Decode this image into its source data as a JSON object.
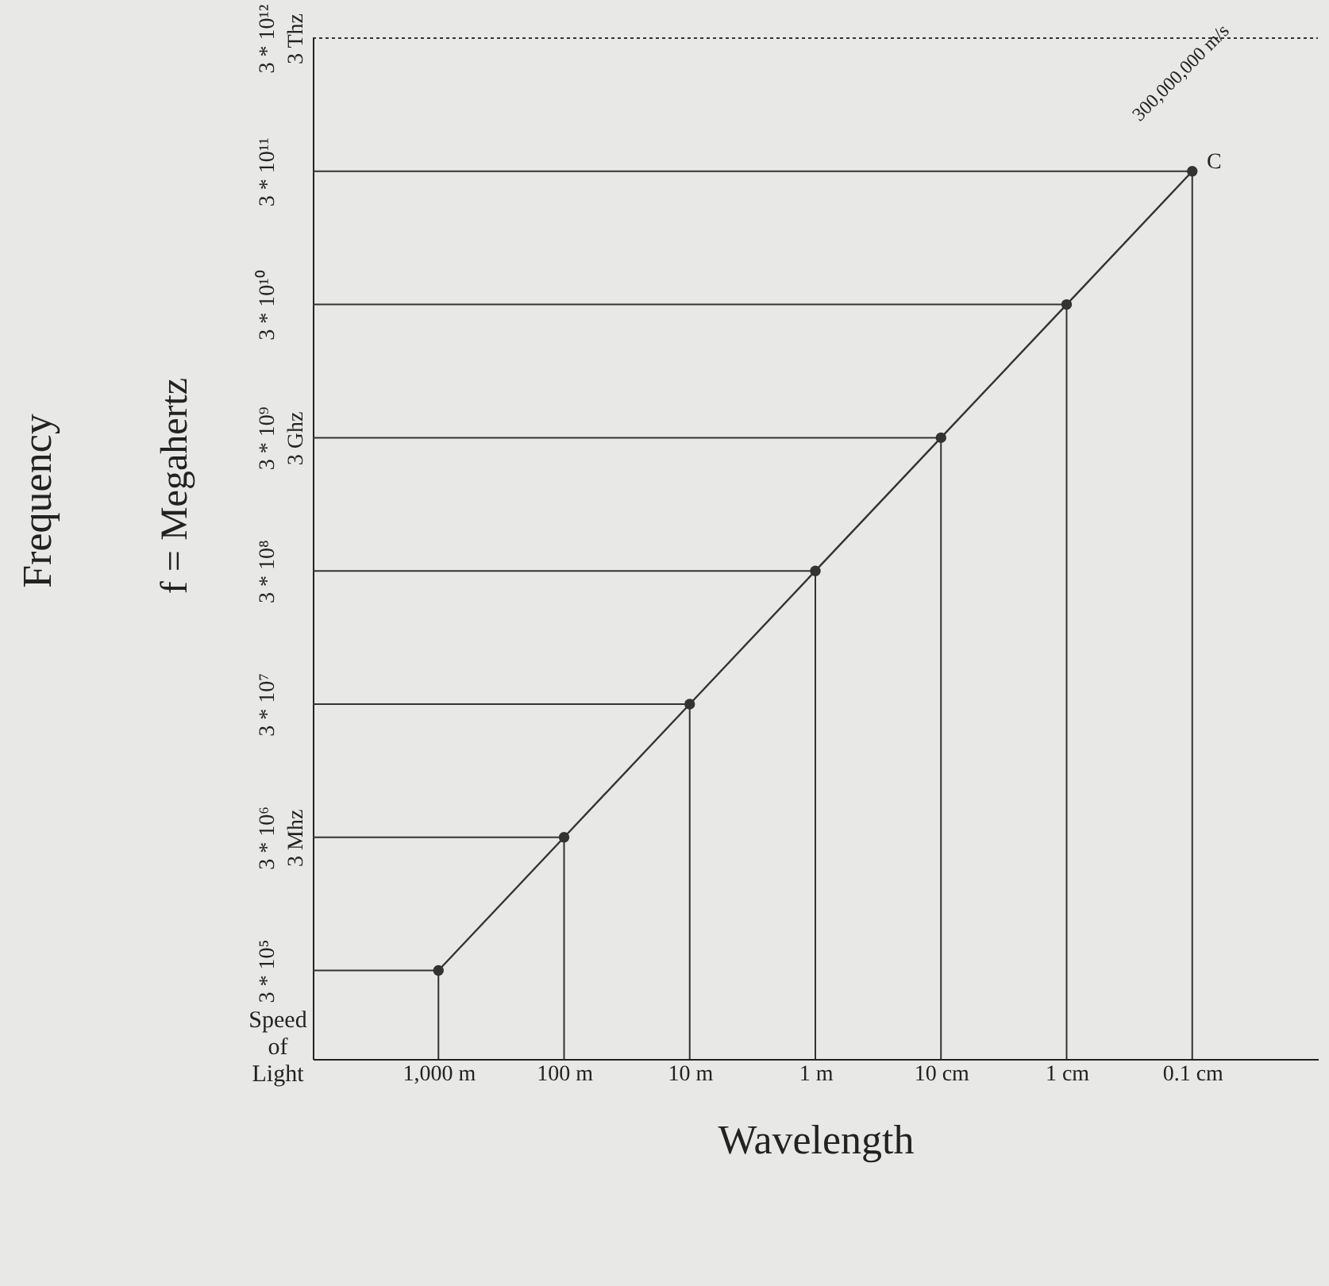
{
  "chart_data": {
    "type": "line",
    "xlabel": "Wavelength",
    "ylabel": "f = Megahertz",
    "categories": [
      "1,000 m",
      "100 m",
      "10 m",
      "1 m",
      "10 cm",
      "1 cm",
      "0.1 cm"
    ],
    "series": [
      {
        "color": "#333333",
        "values": [
          300000,
          3000000,
          30000000,
          300000000,
          3000000000,
          30000000000,
          300000000000
        ]
      },
      {
        "type": "lollipop",
        "color": "#333333",
        "values": [
          300000,
          3000000,
          30000000,
          300000000,
          3000000000,
          30000000000,
          300000000000
        ]
      }
    ],
    "log": true,
    "ylim": [
      65000,
      3000000000000
    ],
    "yticks": [
      {
        "value": 300000,
        "label": "3 * 10⁵"
      },
      {
        "value": 3000000,
        "label": "3 * 10⁶\n3 Mhz"
      },
      {
        "value": 30000000,
        "label": "3 * 10⁷"
      },
      {
        "value": 300000000,
        "label": "3 * 10⁸"
      },
      {
        "value": 3000000000,
        "label": "3 * 10⁹\n3 Ghz"
      },
      {
        "value": 30000000000,
        "label": "3 * 10¹⁰"
      },
      {
        "value": 300000000000,
        "label": "3 * 10¹¹"
      },
      {
        "value": 3000000000000,
        "label": "3 * 10¹²\n3 Thz"
      }
    ],
    "ref_lines": [
      {
        "axis": "y",
        "value": 3000000000000,
        "line_style": "dotted"
      },
      {
        "axis": "y",
        "value": 300000
      },
      {
        "axis": "y",
        "value": 3000000
      },
      {
        "axis": "y",
        "value": 30000000
      },
      {
        "axis": "y",
        "value": 300000000
      },
      {
        "axis": "y",
        "value": 3000000000
      },
      {
        "axis": "y",
        "value": 30000000000
      },
      {
        "axis": "y",
        "value": 300000000000
      }
    ],
    "annotations": [
      "Frequency",
      "Speed of Light",
      "300,000,000 m/s",
      "C"
    ]
  }
}
